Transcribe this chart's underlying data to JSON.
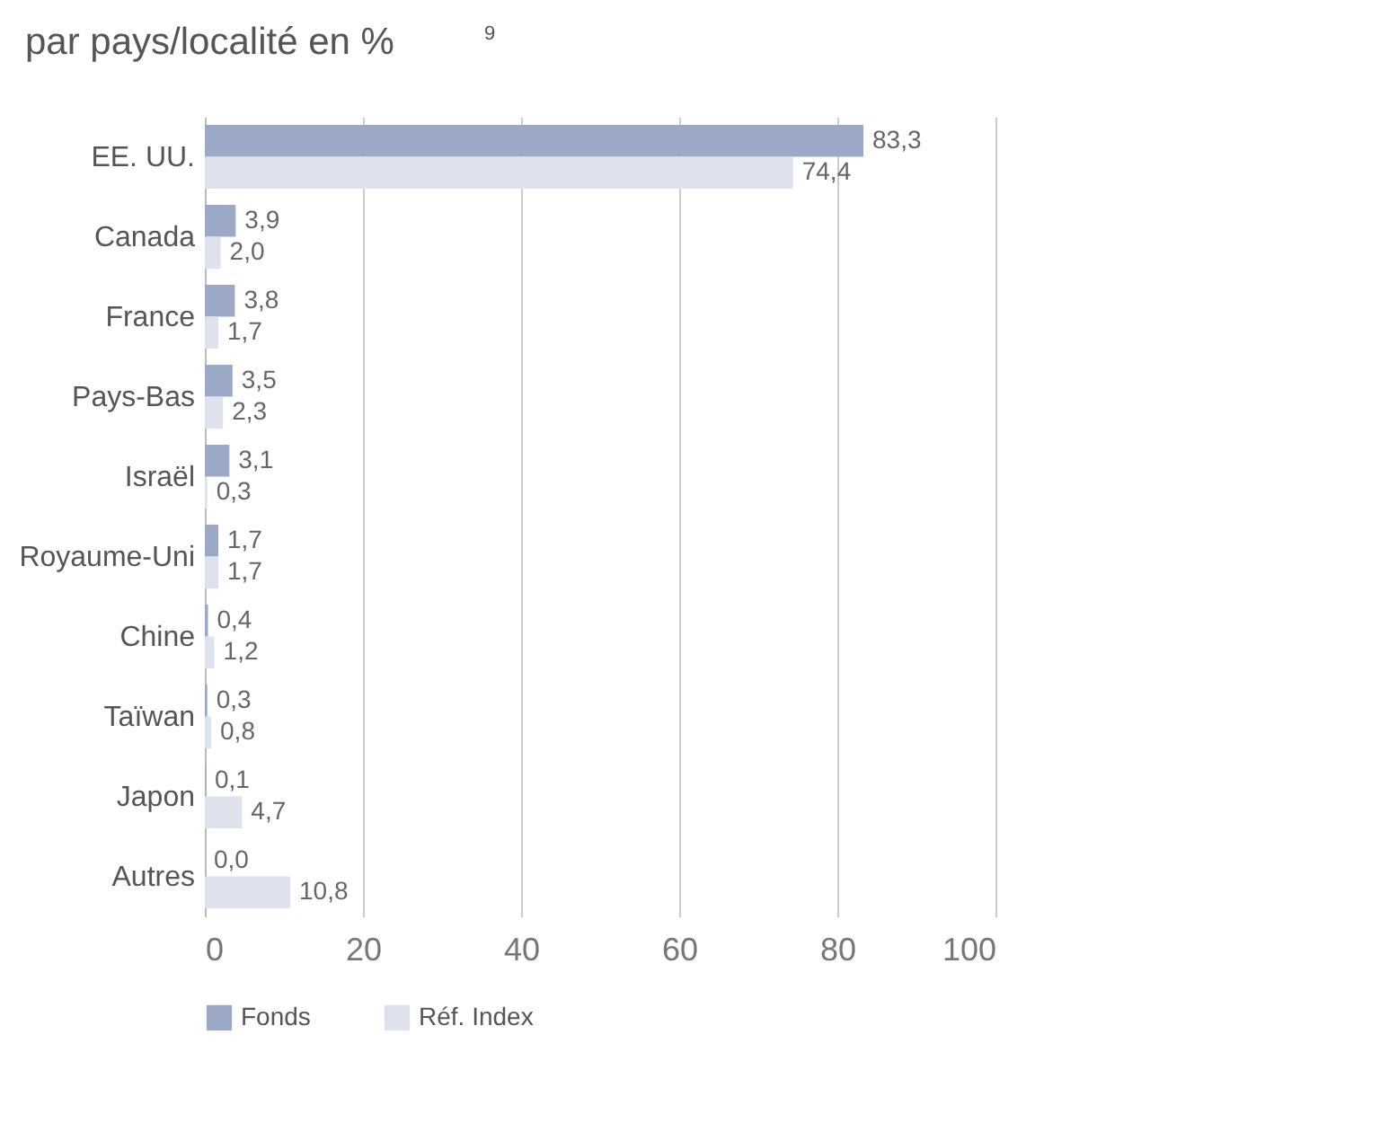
{
  "chart_data": {
    "type": "bar",
    "orientation": "horizontal",
    "title": "par pays/localité en %$^{9}$",
    "categories": [
      "EE. UU.",
      "Canada",
      "France",
      "Pays-Bas",
      "Israël",
      "Royaume-Uni",
      "Chine",
      "Taïwan",
      "Japon",
      "Autres"
    ],
    "series": [
      {
        "name": "Fonds",
        "color": "#9ba9c6",
        "values": [
          83.3,
          3.9,
          3.8,
          3.5,
          3.1,
          1.7,
          0.4,
          0.3,
          0.1,
          0.0
        ],
        "value_labels": [
          "83,3",
          "3,9",
          "3,8",
          "3,5",
          "3,1",
          "1,7",
          "0,4",
          "0,3",
          "0,1",
          "0,0"
        ]
      },
      {
        "name": "Réf. Index",
        "color": "#dde2ec",
        "values": [
          74.4,
          2.0,
          1.7,
          2.3,
          0.3,
          1.7,
          1.2,
          0.8,
          4.7,
          10.8
        ],
        "value_labels": [
          "74,4",
          "2,0",
          "1,7",
          "2,3",
          "0,3",
          "1,7",
          "1,2",
          "0,8",
          "4,7",
          "10,8"
        ]
      }
    ],
    "xlim": [
      0,
      100
    ],
    "xticks": [
      0,
      20,
      40,
      60,
      80,
      100
    ],
    "grid": "x",
    "legend": "bottom left"
  }
}
